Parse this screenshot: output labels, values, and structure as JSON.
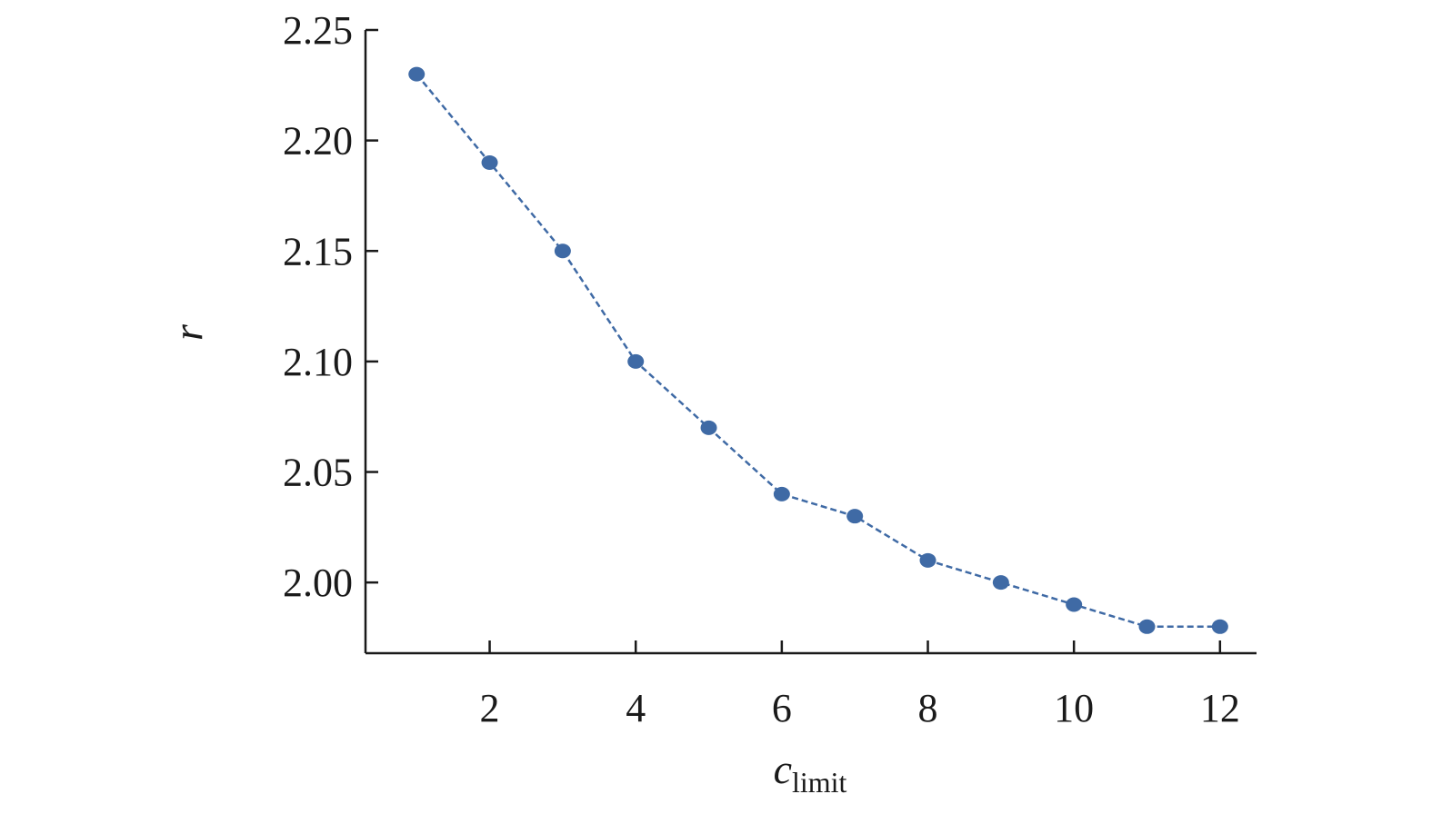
{
  "chart_data": {
    "type": "line",
    "xlabel": {
      "main": "c",
      "sub": "limit"
    },
    "ylabel": "r",
    "xlim": [
      0.3,
      12.5
    ],
    "ylim": [
      1.968,
      2.25
    ],
    "x_ticks": [
      2,
      4,
      6,
      8,
      10,
      12
    ],
    "x_tick_labels": [
      "2",
      "4",
      "6",
      "8",
      "10",
      "12"
    ],
    "y_ticks": [
      2.0,
      2.05,
      2.1,
      2.15,
      2.2,
      2.25
    ],
    "y_tick_labels": [
      "2.00",
      "2.05",
      "2.10",
      "2.15",
      "2.20",
      "2.25"
    ],
    "grid": false,
    "series": [
      {
        "color": "#3f6aa5",
        "line_style": "dashed",
        "marker": "circle",
        "x": [
          1,
          2,
          3,
          4,
          5,
          6,
          7,
          8,
          9,
          10,
          11,
          12
        ],
        "y": [
          2.23,
          2.19,
          2.15,
          2.1,
          2.07,
          2.04,
          2.03,
          2.01,
          2.0,
          1.99,
          1.98,
          1.98
        ]
      }
    ]
  }
}
